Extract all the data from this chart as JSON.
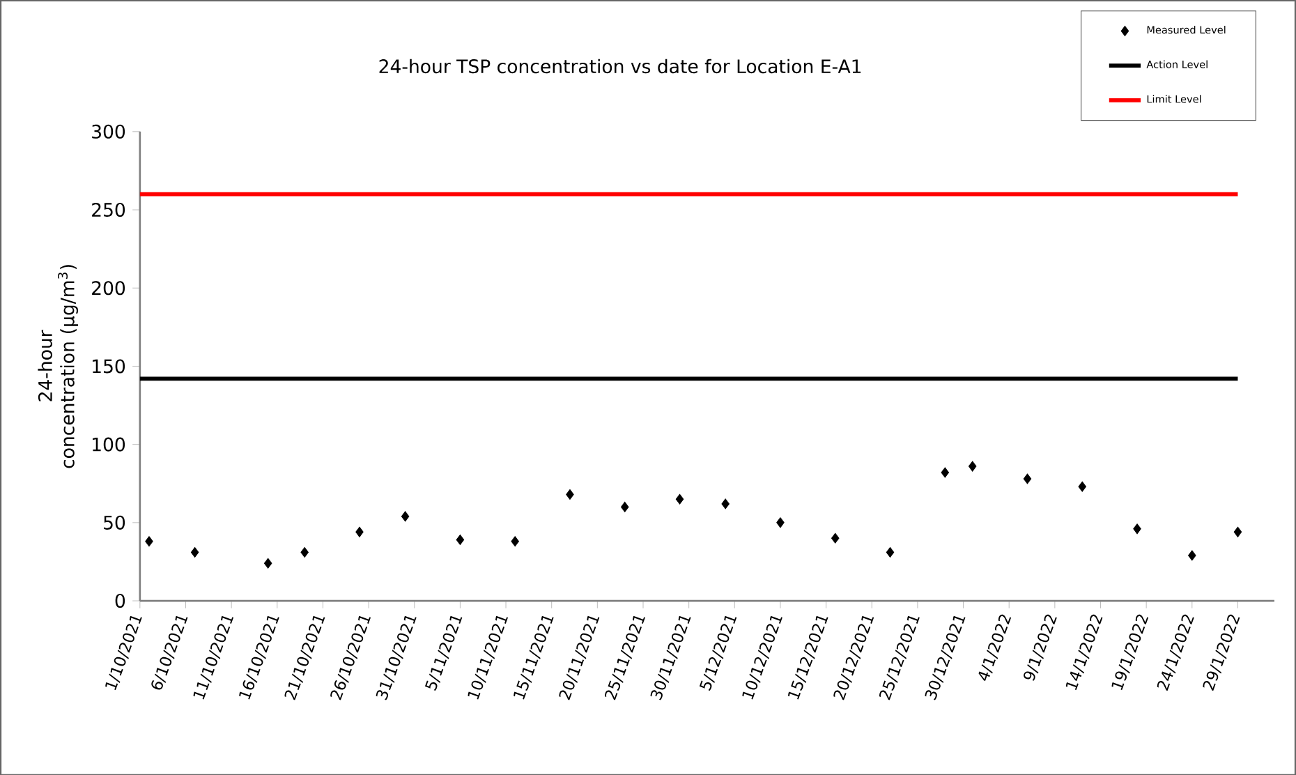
{
  "chart_data": {
    "type": "scatter",
    "title": "24-hour TSP concentration vs date for Location E-A1",
    "ylabel": "24-hour concentration (µg/m$^{3}$)",
    "x": [
      "2021-10-02",
      "2021-10-07",
      "2021-10-15",
      "2021-10-19",
      "2021-10-25",
      "2021-10-30",
      "2021-11-05",
      "2021-11-11",
      "2021-11-17",
      "2021-11-23",
      "2021-11-29",
      "2021-12-04",
      "2021-12-10",
      "2021-12-16",
      "2021-12-22",
      "2021-12-28",
      "2021-12-31",
      "2022-01-06",
      "2022-01-12",
      "2022-01-18",
      "2022-01-24",
      "2022-01-29"
    ],
    "series": [
      {
        "name": "Measured Level",
        "color": "#000000",
        "values": [
          38,
          31,
          24,
          31,
          44,
          54,
          39,
          38,
          68,
          60,
          65,
          62,
          50,
          40,
          31,
          82,
          86,
          78,
          73,
          46,
          29,
          44
        ]
      }
    ],
    "marker": "diamond",
    "ref_lines": [
      {
        "axis": "y",
        "value": 142,
        "label": "Action Level",
        "color": "#000000"
      },
      {
        "axis": "y",
        "value": 260,
        "label": "Limit Level",
        "color": "#ff0000"
      }
    ],
    "xlim": [
      "2021-10-01",
      "2022-02-02"
    ],
    "xticks": [
      {
        "value": "2021-10-01",
        "label": "1/10/2021"
      },
      {
        "value": "2021-10-06",
        "label": "6/10/2021"
      },
      {
        "value": "2021-10-11",
        "label": "11/10/2021"
      },
      {
        "value": "2021-10-16",
        "label": "16/10/2021"
      },
      {
        "value": "2021-10-21",
        "label": "21/10/2021"
      },
      {
        "value": "2021-10-26",
        "label": "26/10/2021"
      },
      {
        "value": "2021-10-31",
        "label": "31/10/2021"
      },
      {
        "value": "2021-11-05",
        "label": "5/11/2021"
      },
      {
        "value": "2021-11-10",
        "label": "10/11/2021"
      },
      {
        "value": "2021-11-15",
        "label": "15/11/2021"
      },
      {
        "value": "2021-11-20",
        "label": "20/11/2021"
      },
      {
        "value": "2021-11-25",
        "label": "25/11/2021"
      },
      {
        "value": "2021-11-30",
        "label": "30/11/2021"
      },
      {
        "value": "2021-12-05",
        "label": "5/12/2021"
      },
      {
        "value": "2021-12-10",
        "label": "10/12/2021"
      },
      {
        "value": "2021-12-15",
        "label": "15/12/2021"
      },
      {
        "value": "2021-12-20",
        "label": "20/12/2021"
      },
      {
        "value": "2021-12-25",
        "label": "25/12/2021"
      },
      {
        "value": "2021-12-30",
        "label": "30/12/2021"
      },
      {
        "value": "2022-01-04",
        "label": "4/1/2022"
      },
      {
        "value": "2022-01-09",
        "label": "9/1/2022"
      },
      {
        "value": "2022-01-14",
        "label": "14/1/2022"
      },
      {
        "value": "2022-01-19",
        "label": "19/1/2022"
      },
      {
        "value": "2022-01-24",
        "label": "24/1/2022"
      },
      {
        "value": "2022-01-29",
        "label": "29/1/2022"
      }
    ],
    "ylim": [
      0,
      300
    ],
    "yticks": [
      0,
      50,
      100,
      150,
      200,
      250,
      300
    ],
    "grid": false,
    "legend": "top right"
  }
}
